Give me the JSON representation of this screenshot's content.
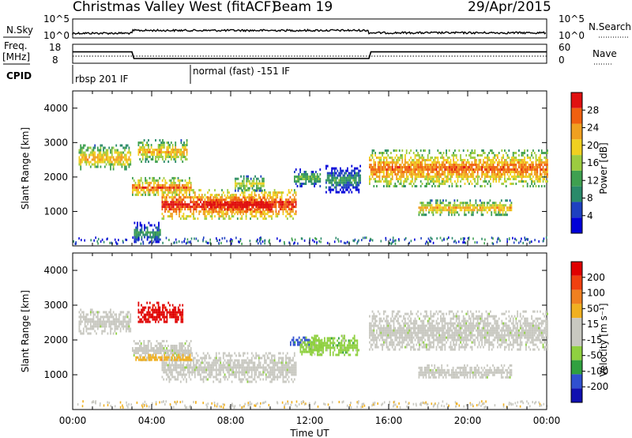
{
  "header": {
    "station": "Christmas Valley West (fitACF)",
    "beam": "Beam 19",
    "date": "29/Apr/2015"
  },
  "top_panels": {
    "nsky_label": "N.Sky",
    "nsky_ticks": [
      "10^5",
      "10^0"
    ],
    "nsearch_ticks": [
      "10^5",
      "10^0"
    ],
    "nsearch_label": "N.Search",
    "freq_label_1": "Freq.",
    "freq_label_2": "[MHz]",
    "freq_ticks": [
      "18",
      "8"
    ],
    "nave_ticks": [
      "60",
      "0"
    ],
    "nave_label": "Nave",
    "cpid_label": "CPID",
    "cpid_modes": [
      "rbsp 201 IF",
      "normal (fast) -151 IF"
    ],
    "frequency_trace_mhz": [
      [
        0,
        14
      ],
      [
        3,
        14
      ],
      [
        3.1,
        10.5
      ],
      [
        15,
        10.5
      ],
      [
        15.1,
        14
      ],
      [
        24,
        14
      ]
    ]
  },
  "colors": {
    "power": [
      "#0000d8",
      "#1e40c0",
      "#2a8a6a",
      "#3fa050",
      "#9ccc40",
      "#f0d020",
      "#f0a020",
      "#f06010",
      "#e01010"
    ],
    "velocity": [
      "#1010b0",
      "#3050d0",
      "#30a040",
      "#8fd040",
      "#c8c8c0",
      "#c8c8c0",
      "#f0b020",
      "#f08020",
      "#f04010",
      "#e00000"
    ]
  },
  "chart_data": [
    {
      "type": "heatmap",
      "name": "power",
      "ylabel": "Slant Range [km]",
      "yticks": [
        "4000",
        "3000",
        "2000",
        "1000"
      ],
      "ylim": [
        0,
        4500
      ],
      "xlim_hours": [
        0,
        24
      ],
      "colorbar_label": "Power [dB]",
      "colorbar_ticks": [
        "28",
        "24",
        "20",
        "16",
        "12",
        "8",
        "4"
      ],
      "regions": [
        {
          "t0": 0.3,
          "t1": 2.9,
          "r0": 2200,
          "r1": 2950,
          "level": 6
        },
        {
          "t0": 3.0,
          "t1": 6.0,
          "r0": 1450,
          "r1": 2000,
          "level": 7
        },
        {
          "t0": 3.3,
          "t1": 5.8,
          "r0": 2450,
          "r1": 3100,
          "level": 6
        },
        {
          "t0": 4.5,
          "t1": 11.3,
          "r0": 800,
          "r1": 1650,
          "level": 8
        },
        {
          "t0": 6.8,
          "t1": 10.0,
          "r0": 950,
          "r1": 1500,
          "level": 9
        },
        {
          "t0": 8.2,
          "t1": 9.7,
          "r0": 1600,
          "r1": 2050,
          "level": 5
        },
        {
          "t0": 11.2,
          "t1": 12.5,
          "r0": 1750,
          "r1": 2250,
          "level": 4
        },
        {
          "t0": 12.8,
          "t1": 14.6,
          "r0": 1550,
          "r1": 2350,
          "level": 3
        },
        {
          "t0": 15.0,
          "t1": 24.0,
          "r0": 1750,
          "r1": 2800,
          "level": 7
        },
        {
          "t0": 17.5,
          "t1": 22.2,
          "r0": 900,
          "r1": 1350,
          "level": 6
        },
        {
          "t0": 3.1,
          "t1": 4.4,
          "r0": 100,
          "r1": 700,
          "level": 3
        }
      ]
    },
    {
      "type": "heatmap",
      "name": "velocity",
      "ylabel": "Slant Range [km]",
      "yticks": [
        "4000",
        "3000",
        "2000",
        "1000"
      ],
      "ylim": [
        0,
        4500
      ],
      "xlim_hours": [
        0,
        24
      ],
      "xticks": [
        "00:00",
        "04:00",
        "08:00",
        "12:00",
        "16:00",
        "20:00",
        "00:00"
      ],
      "xlabel": "Time UT",
      "colorbar_label": "Velocity [m s⁻¹]",
      "colorbar_ticks": [
        "200",
        "100",
        "50",
        "15",
        "-15",
        "-50",
        "-100",
        "-200"
      ],
      "regions": [
        {
          "t0": 0.3,
          "t1": 2.9,
          "r0": 2200,
          "r1": 2900,
          "level": 4
        },
        {
          "t0": 3.0,
          "t1": 6.0,
          "r0": 1450,
          "r1": 2000,
          "level": 4
        },
        {
          "t0": 3.3,
          "t1": 5.6,
          "r0": 2500,
          "r1": 3100,
          "level": 9
        },
        {
          "t0": 4.5,
          "t1": 11.3,
          "r0": 800,
          "r1": 1650,
          "level": 4
        },
        {
          "t0": 11.0,
          "t1": 12.0,
          "r0": 1850,
          "r1": 2100,
          "level": 1
        },
        {
          "t0": 11.5,
          "t1": 12.7,
          "r0": 1600,
          "r1": 2100,
          "level": 3
        },
        {
          "t0": 12.0,
          "t1": 14.5,
          "r0": 1550,
          "r1": 2150,
          "level": 3
        },
        {
          "t0": 15.0,
          "t1": 24.0,
          "r0": 1700,
          "r1": 2850,
          "level": 4
        },
        {
          "t0": 17.5,
          "t1": 22.2,
          "r0": 900,
          "r1": 1300,
          "level": 4
        },
        {
          "t0": 3.1,
          "t1": 6.0,
          "r0": 1400,
          "r1": 1600,
          "level": 6
        }
      ]
    }
  ]
}
